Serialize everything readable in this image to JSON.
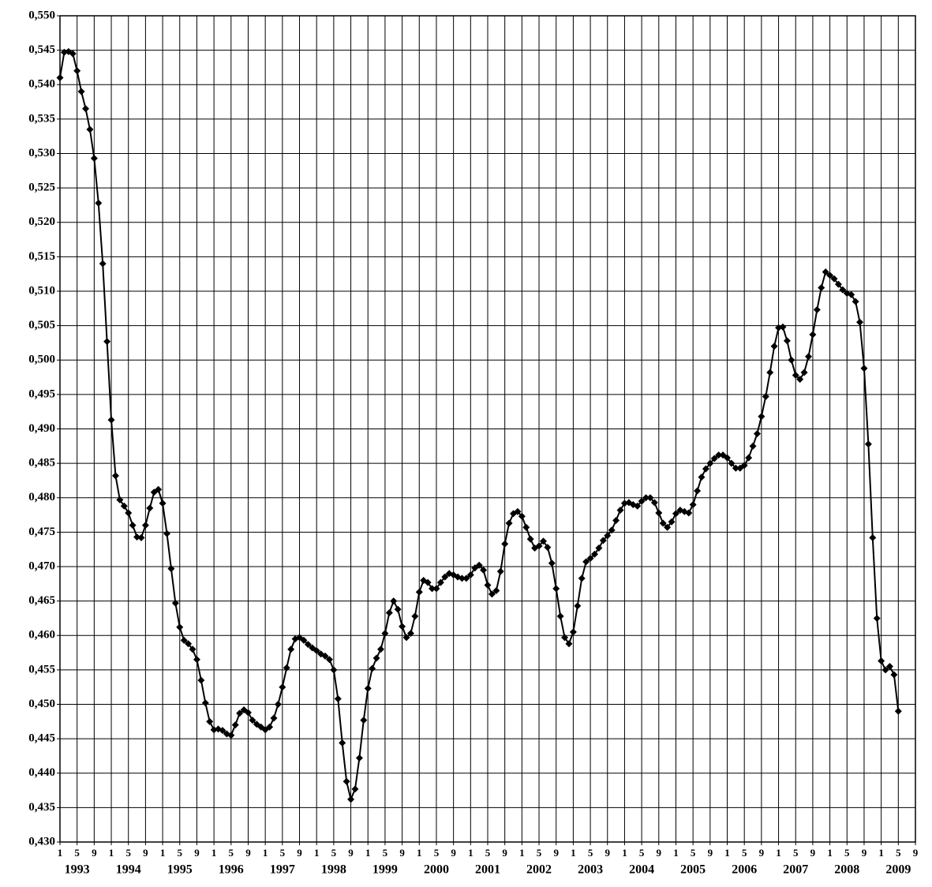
{
  "chart_data": {
    "type": "line",
    "color": "#000000",
    "grid": true,
    "xlim": [
      "1993-01",
      "2009-09"
    ],
    "ylim": [
      0.43,
      0.55
    ],
    "x": [
      "1993-01",
      "1993-02",
      "1993-03",
      "1993-04",
      "1993-05",
      "1993-06",
      "1993-07",
      "1993-08",
      "1993-09",
      "1993-10",
      "1993-11",
      "1993-12",
      "1994-01",
      "1994-02",
      "1994-03",
      "1994-04",
      "1994-05",
      "1994-06",
      "1994-07",
      "1994-08",
      "1994-09",
      "1994-10",
      "1994-11",
      "1994-12",
      "1995-01",
      "1995-02",
      "1995-03",
      "1995-04",
      "1995-05",
      "1995-06",
      "1995-07",
      "1995-08",
      "1995-09",
      "1995-10",
      "1995-11",
      "1995-12",
      "1996-01",
      "1996-02",
      "1996-03",
      "1996-04",
      "1996-05",
      "1996-06",
      "1996-07",
      "1996-08",
      "1996-09",
      "1996-10",
      "1996-11",
      "1996-12",
      "1997-01",
      "1997-02",
      "1997-03",
      "1997-04",
      "1997-05",
      "1997-06",
      "1997-07",
      "1997-08",
      "1997-09",
      "1997-10",
      "1997-11",
      "1997-12",
      "1998-01",
      "1998-02",
      "1998-03",
      "1998-04",
      "1998-05",
      "1998-06",
      "1998-07",
      "1998-08",
      "1998-09",
      "1998-10",
      "1998-11",
      "1998-12",
      "1999-01",
      "1999-02",
      "1999-03",
      "1999-04",
      "1999-05",
      "1999-06",
      "1999-07",
      "1999-08",
      "1999-09",
      "1999-10",
      "1999-11",
      "1999-12",
      "2000-01",
      "2000-02",
      "2000-03",
      "2000-04",
      "2000-05",
      "2000-06",
      "2000-07",
      "2000-08",
      "2000-09",
      "2000-10",
      "2000-11",
      "2000-12",
      "2001-01",
      "2001-02",
      "2001-03",
      "2001-04",
      "2001-05",
      "2001-06",
      "2001-07",
      "2001-08",
      "2001-09",
      "2001-10",
      "2001-11",
      "2001-12",
      "2002-01",
      "2002-02",
      "2002-03",
      "2002-04",
      "2002-05",
      "2002-06",
      "2002-07",
      "2002-08",
      "2002-09",
      "2002-10",
      "2002-11",
      "2002-12",
      "2003-01",
      "2003-02",
      "2003-03",
      "2003-04",
      "2003-05",
      "2003-06",
      "2003-07",
      "2003-08",
      "2003-09",
      "2003-10",
      "2003-11",
      "2003-12",
      "2004-01",
      "2004-02",
      "2004-03",
      "2004-04",
      "2004-05",
      "2004-06",
      "2004-07",
      "2004-08",
      "2004-09",
      "2004-10",
      "2004-11",
      "2004-12",
      "2005-01",
      "2005-02",
      "2005-03",
      "2005-04",
      "2005-05",
      "2005-06",
      "2005-07",
      "2005-08",
      "2005-09",
      "2005-10",
      "2005-11",
      "2005-12",
      "2006-01",
      "2006-02",
      "2006-03",
      "2006-04",
      "2006-05",
      "2006-06",
      "2006-07",
      "2006-08",
      "2006-09",
      "2006-10",
      "2006-11",
      "2006-12",
      "2007-01",
      "2007-02",
      "2007-03",
      "2007-04",
      "2007-05",
      "2007-06",
      "2007-07",
      "2007-08",
      "2007-09",
      "2007-10",
      "2007-11",
      "2007-12",
      "2008-01",
      "2008-02",
      "2008-03",
      "2008-04",
      "2008-05",
      "2008-06",
      "2008-07",
      "2008-08",
      "2008-09",
      "2008-10",
      "2008-11",
      "2008-12",
      "2009-01",
      "2009-02",
      "2009-03",
      "2009-04",
      "2009-05"
    ],
    "values": [
      0.541,
      0.5447,
      0.5448,
      0.5445,
      0.542,
      0.539,
      0.5365,
      0.5335,
      0.5293,
      0.5228,
      0.514,
      0.5027,
      0.4913,
      0.4832,
      0.4797,
      0.4788,
      0.4778,
      0.476,
      0.4743,
      0.4742,
      0.476,
      0.4785,
      0.4808,
      0.4812,
      0.4792,
      0.4748,
      0.4697,
      0.4647,
      0.4612,
      0.4593,
      0.4588,
      0.458,
      0.4565,
      0.4535,
      0.4502,
      0.4475,
      0.4463,
      0.4464,
      0.4462,
      0.4457,
      0.4455,
      0.447,
      0.4487,
      0.4492,
      0.4488,
      0.4477,
      0.4471,
      0.4467,
      0.4463,
      0.4467,
      0.448,
      0.45,
      0.4525,
      0.4553,
      0.458,
      0.4595,
      0.4597,
      0.4593,
      0.4587,
      0.4582,
      0.4578,
      0.4573,
      0.457,
      0.4565,
      0.455,
      0.4508,
      0.4444,
      0.4388,
      0.4362,
      0.4377,
      0.4422,
      0.4477,
      0.4523,
      0.4552,
      0.4567,
      0.458,
      0.4603,
      0.4633,
      0.465,
      0.4638,
      0.4613,
      0.4597,
      0.4603,
      0.4628,
      0.4663,
      0.468,
      0.4677,
      0.4668,
      0.4668,
      0.4677,
      0.4685,
      0.469,
      0.4688,
      0.4685,
      0.4683,
      0.4683,
      0.4688,
      0.4698,
      0.4702,
      0.4695,
      0.4673,
      0.466,
      0.4665,
      0.4693,
      0.4733,
      0.4763,
      0.4777,
      0.478,
      0.4773,
      0.4757,
      0.474,
      0.4727,
      0.473,
      0.4737,
      0.4728,
      0.4705,
      0.4668,
      0.4628,
      0.4597,
      0.4588,
      0.4605,
      0.4643,
      0.4683,
      0.4707,
      0.4712,
      0.4718,
      0.4727,
      0.4738,
      0.4745,
      0.4753,
      0.4767,
      0.4782,
      0.4792,
      0.4793,
      0.479,
      0.4788,
      0.4795,
      0.48,
      0.48,
      0.4793,
      0.4778,
      0.4763,
      0.4757,
      0.4765,
      0.4777,
      0.4782,
      0.478,
      0.4778,
      0.479,
      0.481,
      0.483,
      0.4842,
      0.485,
      0.4857,
      0.4862,
      0.4862,
      0.4858,
      0.485,
      0.4843,
      0.4843,
      0.4847,
      0.4858,
      0.4875,
      0.4893,
      0.4918,
      0.4947,
      0.4982,
      0.502,
      0.5047,
      0.5048,
      0.5028,
      0.5,
      0.4978,
      0.4972,
      0.4982,
      0.5005,
      0.5037,
      0.5073,
      0.5105,
      0.5128,
      0.5123,
      0.5118,
      0.511,
      0.5102,
      0.5097,
      0.5095,
      0.5085,
      0.5055,
      0.4988,
      0.4878,
      0.4742,
      0.4625,
      0.4563,
      0.455,
      0.4555,
      0.4543,
      0.449
    ],
    "yticks": [
      {
        "value": 0.43,
        "label": "0,430"
      },
      {
        "value": 0.435,
        "label": "0,435"
      },
      {
        "value": 0.44,
        "label": "0,440"
      },
      {
        "value": 0.445,
        "label": "0,445"
      },
      {
        "value": 0.45,
        "label": "0,450"
      },
      {
        "value": 0.455,
        "label": "0,455"
      },
      {
        "value": 0.46,
        "label": "0,460"
      },
      {
        "value": 0.465,
        "label": "0,465"
      },
      {
        "value": 0.47,
        "label": "0,470"
      },
      {
        "value": 0.475,
        "label": "0,475"
      },
      {
        "value": 0.48,
        "label": "0,480"
      },
      {
        "value": 0.485,
        "label": "0,485"
      },
      {
        "value": 0.49,
        "label": "0,490"
      },
      {
        "value": 0.495,
        "label": "0,495"
      },
      {
        "value": 0.5,
        "label": "0,500"
      },
      {
        "value": 0.505,
        "label": "0,505"
      },
      {
        "value": 0.51,
        "label": "0,510"
      },
      {
        "value": 0.515,
        "label": "0,515"
      },
      {
        "value": 0.52,
        "label": "0,520"
      },
      {
        "value": 0.525,
        "label": "0,525"
      },
      {
        "value": 0.53,
        "label": "0,530"
      },
      {
        "value": 0.535,
        "label": "0,535"
      },
      {
        "value": 0.54,
        "label": "0,540"
      },
      {
        "value": 0.545,
        "label": "0,545"
      },
      {
        "value": 0.55,
        "label": "0,550"
      }
    ],
    "xticks": [
      {
        "value": "1993-01",
        "label": "1"
      },
      {
        "value": "1993-05",
        "label": "5"
      },
      {
        "value": "1993-09",
        "label": "9"
      },
      {
        "value": "1994-01",
        "label": "1"
      },
      {
        "value": "1994-05",
        "label": "5"
      },
      {
        "value": "1994-09",
        "label": "9"
      },
      {
        "value": "1995-01",
        "label": "1"
      },
      {
        "value": "1995-05",
        "label": "5"
      },
      {
        "value": "1995-09",
        "label": "9"
      },
      {
        "value": "1996-01",
        "label": "1"
      },
      {
        "value": "1996-05",
        "label": "5"
      },
      {
        "value": "1996-09",
        "label": "9"
      },
      {
        "value": "1997-01",
        "label": "1"
      },
      {
        "value": "1997-05",
        "label": "5"
      },
      {
        "value": "1997-09",
        "label": "9"
      },
      {
        "value": "1998-01",
        "label": "1"
      },
      {
        "value": "1998-05",
        "label": "5"
      },
      {
        "value": "1998-09",
        "label": "9"
      },
      {
        "value": "1999-01",
        "label": "1"
      },
      {
        "value": "1999-05",
        "label": "5"
      },
      {
        "value": "1999-09",
        "label": "9"
      },
      {
        "value": "2000-01",
        "label": "1"
      },
      {
        "value": "2000-05",
        "label": "5"
      },
      {
        "value": "2000-09",
        "label": "9"
      },
      {
        "value": "2001-01",
        "label": "1"
      },
      {
        "value": "2001-05",
        "label": "5"
      },
      {
        "value": "2001-09",
        "label": "9"
      },
      {
        "value": "2002-01",
        "label": "1"
      },
      {
        "value": "2002-05",
        "label": "5"
      },
      {
        "value": "2002-09",
        "label": "9"
      },
      {
        "value": "2003-01",
        "label": "1"
      },
      {
        "value": "2003-05",
        "label": "5"
      },
      {
        "value": "2003-09",
        "label": "9"
      },
      {
        "value": "2004-01",
        "label": "1"
      },
      {
        "value": "2004-05",
        "label": "5"
      },
      {
        "value": "2004-09",
        "label": "9"
      },
      {
        "value": "2005-01",
        "label": "1"
      },
      {
        "value": "2005-05",
        "label": "5"
      },
      {
        "value": "2005-09",
        "label": "9"
      },
      {
        "value": "2006-01",
        "label": "1"
      },
      {
        "value": "2006-05",
        "label": "5"
      },
      {
        "value": "2006-09",
        "label": "9"
      },
      {
        "value": "2007-01",
        "label": "1"
      },
      {
        "value": "2007-05",
        "label": "5"
      },
      {
        "value": "2007-09",
        "label": "9"
      },
      {
        "value": "2008-01",
        "label": "1"
      },
      {
        "value": "2008-05",
        "label": "5"
      },
      {
        "value": "2008-09",
        "label": "9"
      },
      {
        "value": "2009-01",
        "label": "1"
      },
      {
        "value": "2009-05",
        "label": "5"
      },
      {
        "value": "2009-09",
        "label": "9"
      }
    ],
    "x_year_labels": [
      "1993",
      "1994",
      "1995",
      "1996",
      "1997",
      "1998",
      "1999",
      "2000",
      "2001",
      "2002",
      "2003",
      "2004",
      "2005",
      "2006",
      "2007",
      "2008",
      "2009"
    ]
  }
}
